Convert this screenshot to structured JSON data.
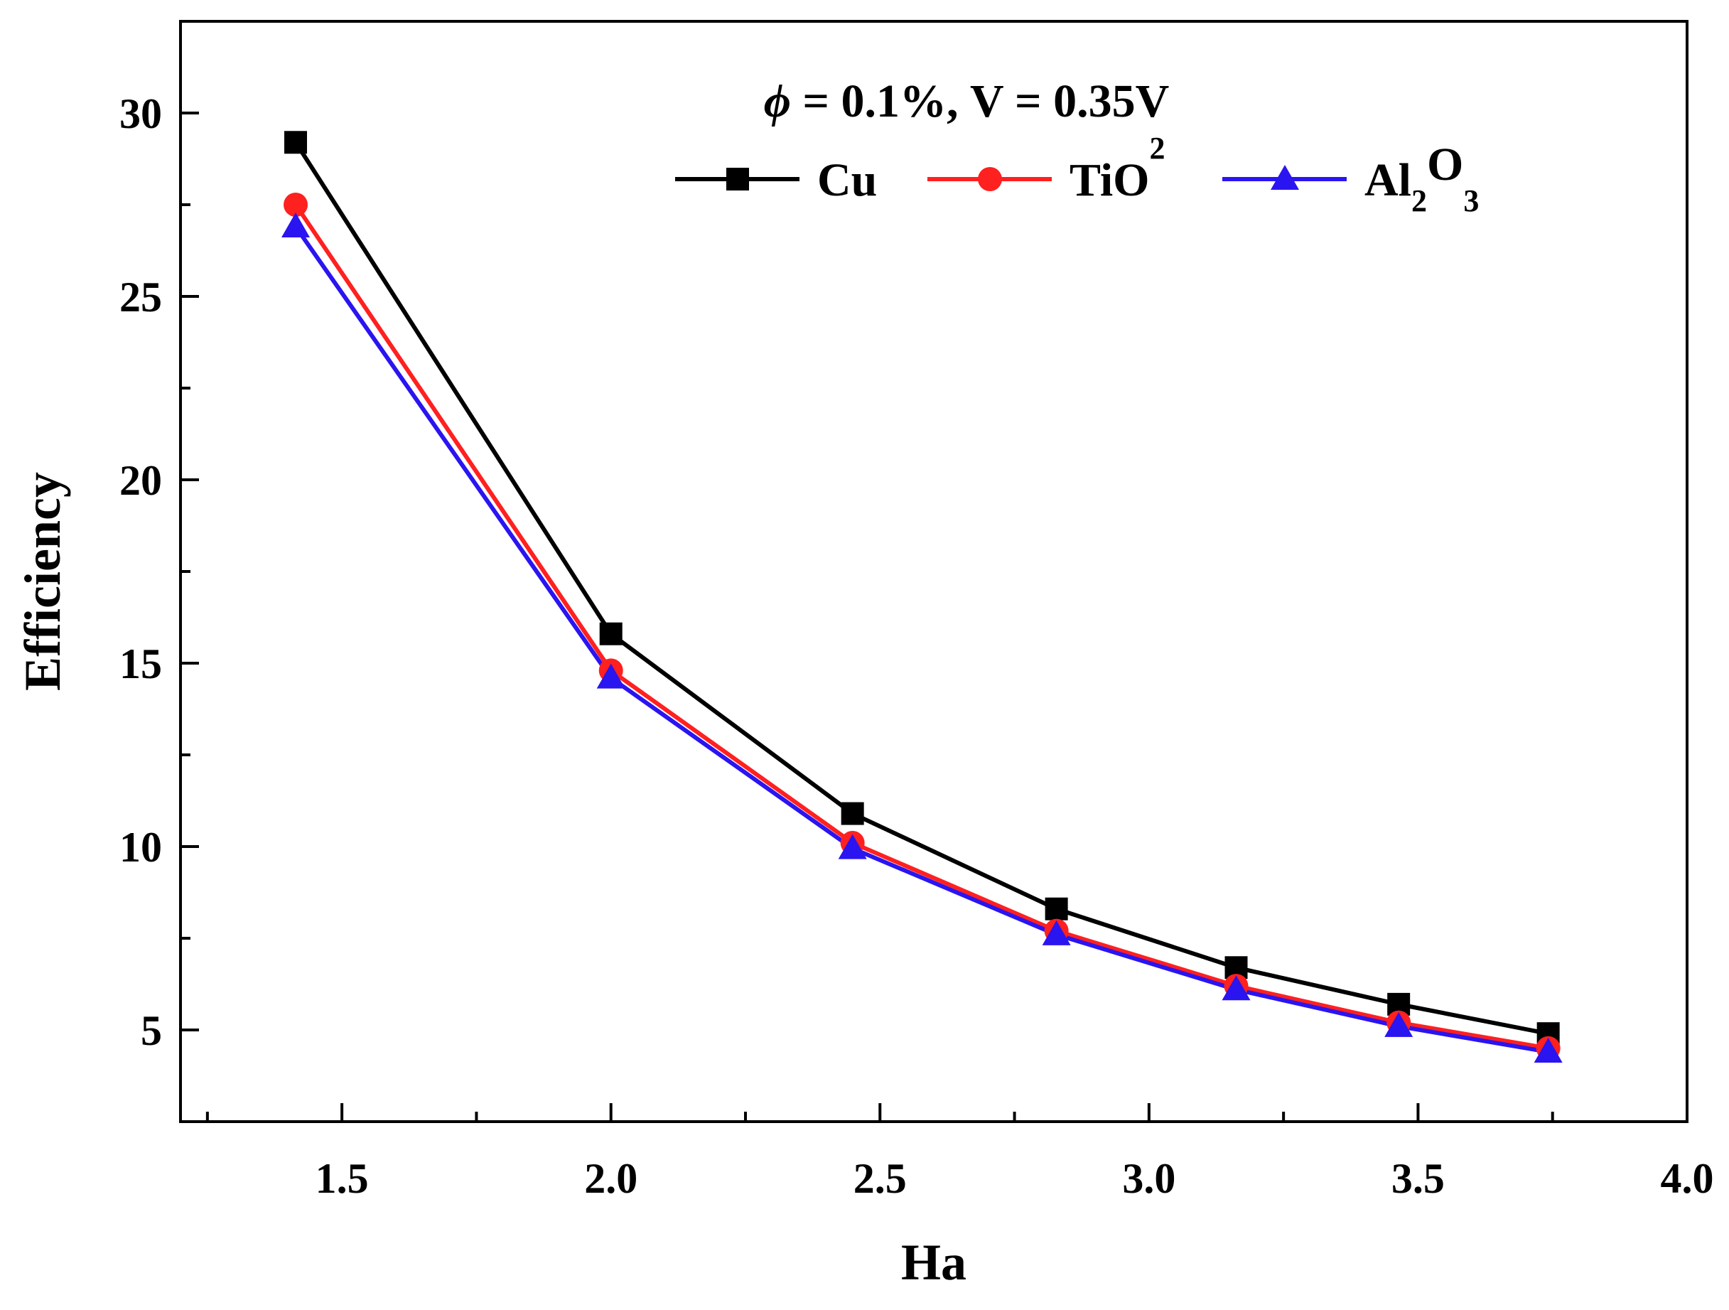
{
  "chart_data": {
    "type": "line",
    "title": "",
    "annotation": {
      "symbol": "ϕ",
      "text": " = 0.1%, V = 0.35V"
    },
    "xlabel": "Ha",
    "ylabel": "Efficiency",
    "xlim": [
      1.2,
      4.0
    ],
    "ylim": [
      2.5,
      32.5
    ],
    "x_ticks": [
      1.5,
      2.0,
      2.5,
      3.0,
      3.5,
      4.0
    ],
    "x_tick_labels": [
      "1.5",
      "2.0",
      "2.5",
      "3.0",
      "3.5",
      "4.0"
    ],
    "y_ticks": [
      5,
      10,
      15,
      20,
      25,
      30
    ],
    "y_tick_labels": [
      "5",
      "10",
      "15",
      "20",
      "25",
      "30"
    ],
    "x_minor_ticks": [
      1.25,
      1.75,
      2.25,
      2.75,
      3.25,
      3.75
    ],
    "y_minor_ticks": [
      7.5,
      12.5,
      17.5,
      22.5,
      27.5
    ],
    "grid": false,
    "legend_position": "top-right",
    "x": [
      1.414,
      2.0,
      2.449,
      2.828,
      3.162,
      3.464,
      3.742
    ],
    "series": [
      {
        "name": "Cu",
        "legend_main": "Cu",
        "legend_sub1": "",
        "legend_mid": "",
        "legend_sub2": "",
        "legend_sup": "",
        "color": "#000000",
        "marker": "square",
        "values": [
          29.2,
          15.8,
          10.9,
          8.3,
          6.7,
          5.7,
          4.9
        ]
      },
      {
        "name": "TiO2",
        "legend_main": "TiO",
        "legend_sub1": "",
        "legend_mid": "",
        "legend_sub2": "",
        "legend_sup": "2",
        "color": "#ff2020",
        "marker": "circle",
        "values": [
          27.5,
          14.8,
          10.1,
          7.7,
          6.2,
          5.2,
          4.5
        ]
      },
      {
        "name": "Al2O3",
        "legend_main": "Al",
        "legend_sub1": "2",
        "legend_mid": "O",
        "legend_sub2": "3",
        "legend_sup": "",
        "color": "#2a14f0",
        "marker": "triangle",
        "values": [
          26.9,
          14.6,
          9.95,
          7.6,
          6.1,
          5.1,
          4.4
        ]
      }
    ]
  }
}
